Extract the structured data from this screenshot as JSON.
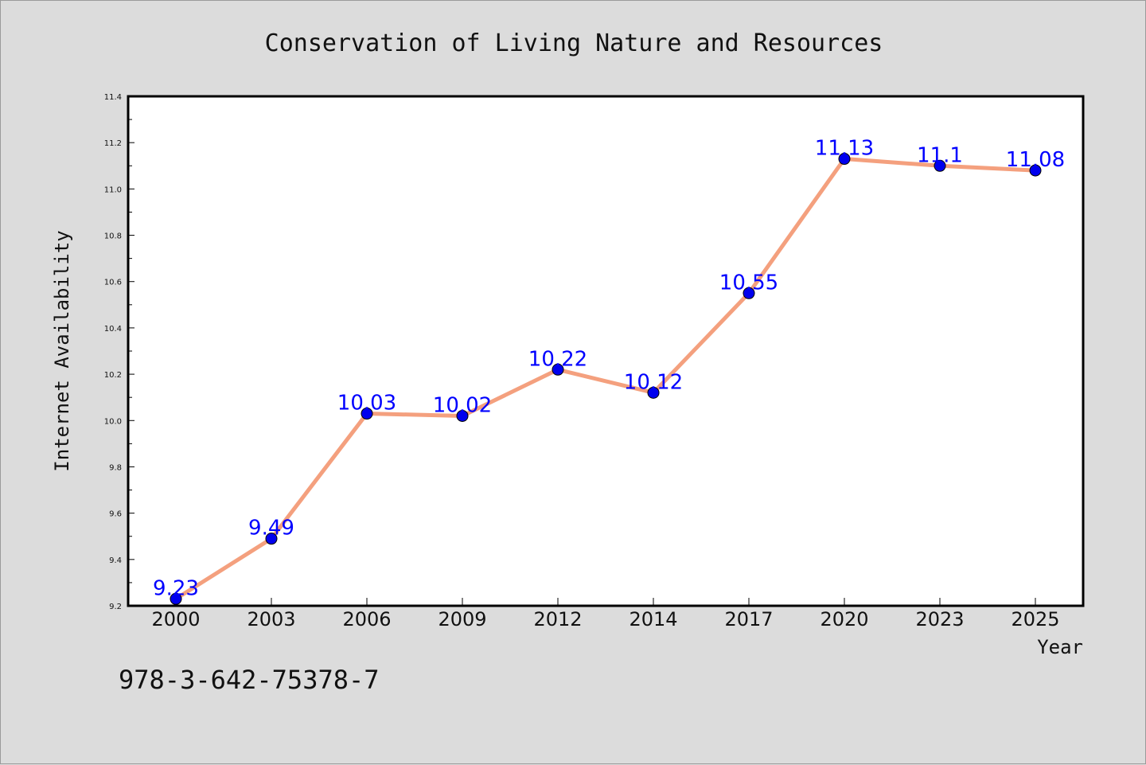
{
  "chart_data": {
    "type": "line",
    "title": "Conservation of Living Nature and Resources",
    "xlabel": "Year",
    "ylabel": "Internet Availability",
    "x": [
      "2000",
      "2003",
      "2006",
      "2009",
      "2012",
      "2014",
      "2017",
      "2020",
      "2023",
      "2025"
    ],
    "values": [
      9.23,
      9.49,
      10.03,
      10.02,
      10.22,
      10.12,
      10.55,
      11.13,
      11.1,
      11.08
    ],
    "data_labels": [
      "9.23",
      "9.49",
      "10.03",
      "10.02",
      "10.22",
      "10.12",
      "10.55",
      "11.13",
      "11.1",
      "11.08"
    ],
    "ylim": [
      9.2,
      11.4
    ],
    "yticks": [
      "9.2",
      "9.4",
      "9.6",
      "9.8",
      "10.0",
      "10.2",
      "10.4",
      "10.6",
      "10.8",
      "11.0",
      "11.2",
      "11.4"
    ],
    "grid": false,
    "line_color": "#f4a07e",
    "marker_color": "#0000ee",
    "label_color": "#0000ff",
    "annotation": "978-3-642-75378-7"
  }
}
